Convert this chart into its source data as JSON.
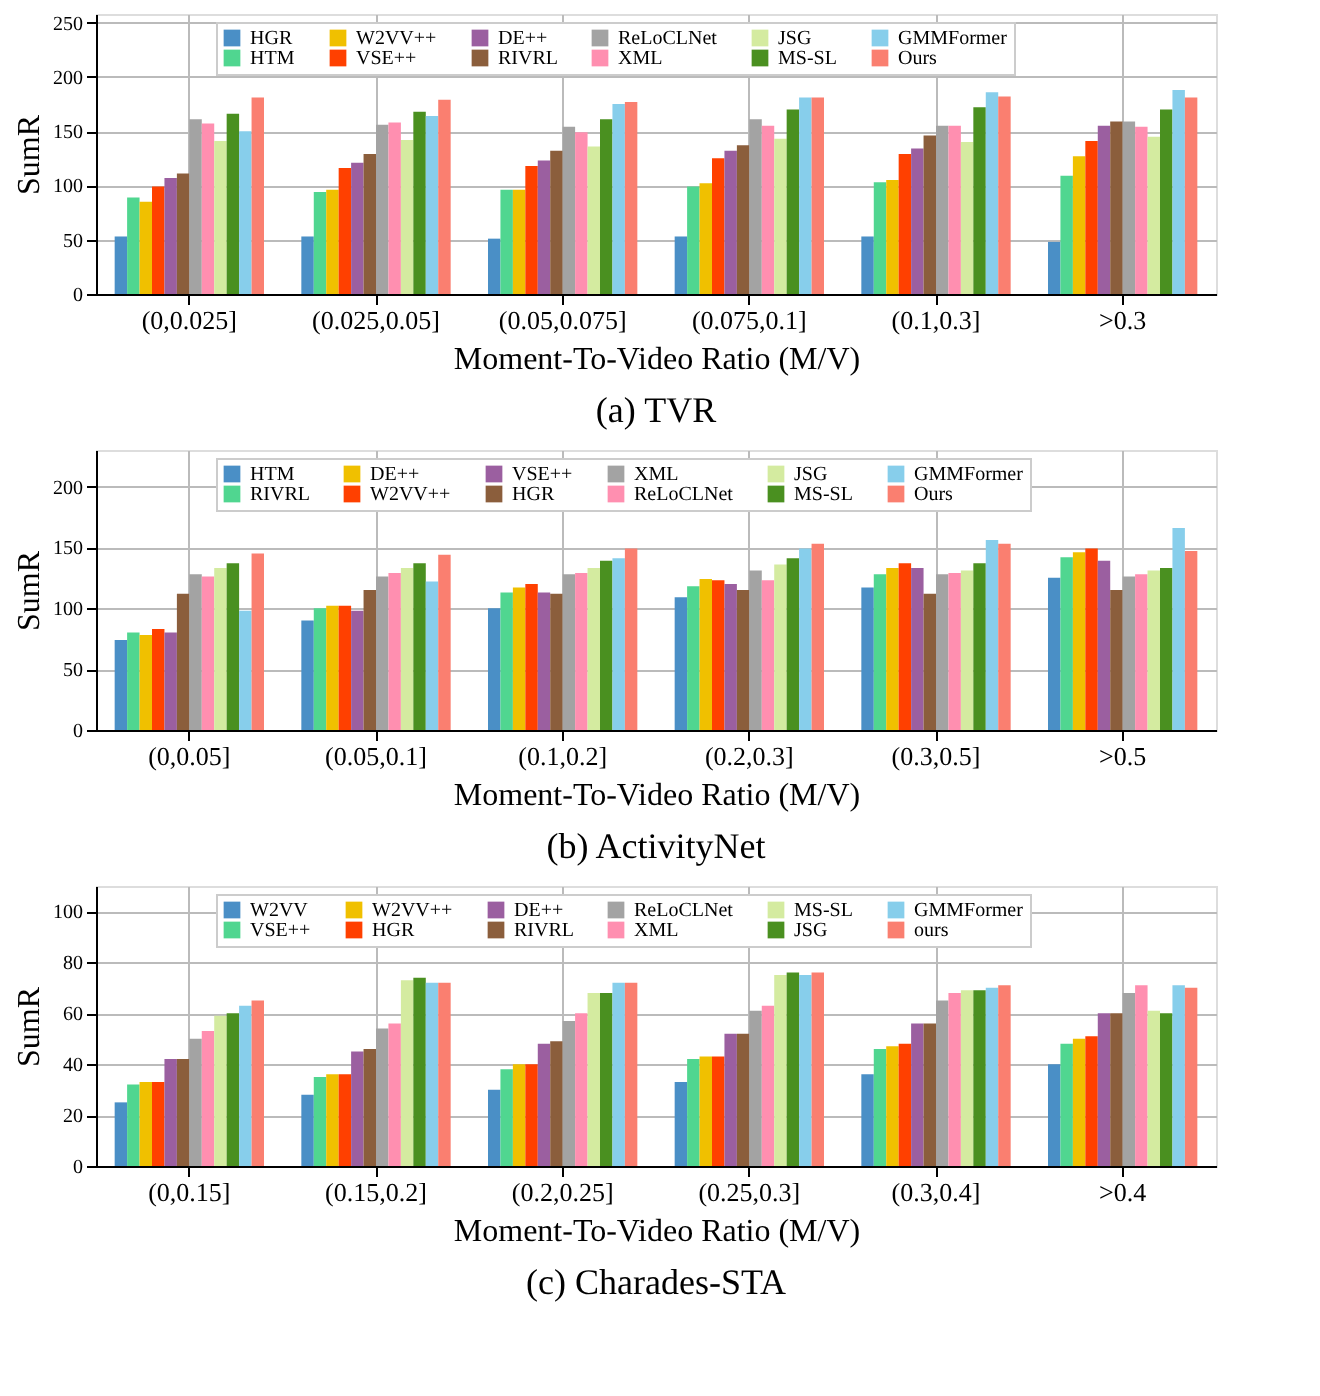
{
  "chart_data": [
    {
      "type": "bar",
      "title": "(a) TVR",
      "xlabel": "Moment-To-Video Ratio (M/V)",
      "ylabel": "SumR",
      "categories": [
        "(0,0.025]",
        "(0.025,0.05]",
        "(0.05,0.075]",
        "(0.075,0.1]",
        "(0.1,0.3]",
        ">0.3"
      ],
      "ylim": [
        0,
        258
      ],
      "yticks": [
        0,
        50,
        100,
        150,
        200,
        250
      ],
      "grid": true,
      "legend": "top",
      "series": [
        {
          "name": "HGR",
          "color": "#4a8fc6",
          "values": [
            53,
            53,
            51,
            53,
            53,
            48
          ]
        },
        {
          "name": "HTM",
          "color": "#50d690",
          "values": [
            89,
            94,
            96,
            99,
            103,
            109
          ]
        },
        {
          "name": "W2VV++",
          "color": "#f0c000",
          "values": [
            85,
            96,
            96,
            102,
            105,
            127
          ]
        },
        {
          "name": "VSE++",
          "color": "#ff4000",
          "values": [
            99,
            116,
            118,
            125,
            129,
            141
          ]
        },
        {
          "name": "DE++",
          "color": "#9b5fa0",
          "values": [
            107,
            121,
            123,
            132,
            134,
            155
          ]
        },
        {
          "name": "RIVRL",
          "color": "#8b5e3c",
          "values": [
            111,
            129,
            132,
            137,
            146,
            159
          ]
        },
        {
          "name": "ReLoCLNet",
          "color": "#a3a3a3",
          "values": [
            161,
            156,
            154,
            161,
            155,
            159
          ]
        },
        {
          "name": "XML",
          "color": "#ff8fb0",
          "values": [
            157,
            158,
            149,
            155,
            155,
            154
          ]
        },
        {
          "name": "JSG",
          "color": "#d4eba0",
          "values": [
            141,
            142,
            136,
            143,
            140,
            145
          ]
        },
        {
          "name": "MS-SL",
          "color": "#4a9020",
          "values": [
            166,
            168,
            161,
            170,
            172,
            170
          ]
        },
        {
          "name": "GMMFormer",
          "color": "#87ceeb",
          "values": [
            150,
            164,
            175,
            181,
            186,
            188
          ]
        },
        {
          "name": "Ours",
          "color": "#fa7f70",
          "values": [
            181,
            179,
            177,
            181,
            182,
            181
          ]
        }
      ]
    },
    {
      "type": "bar",
      "title": "(b) ActivityNet",
      "xlabel": "Moment-To-Video Ratio (M/V)",
      "ylabel": "SumR",
      "categories": [
        "(0,0.05]",
        "(0.05,0.1]",
        "(0.1,0.2]",
        "(0.2,0.3]",
        "(0.3,0.5]",
        ">0.5"
      ],
      "ylim": [
        0,
        230
      ],
      "yticks": [
        0,
        50,
        100,
        150,
        200
      ],
      "grid": true,
      "legend": "top",
      "series": [
        {
          "name": "HTM",
          "color": "#4a8fc6",
          "values": [
            74,
            90,
            100,
            109,
            117,
            125
          ]
        },
        {
          "name": "RIVRL",
          "color": "#50d690",
          "values": [
            80,
            100,
            113,
            118,
            128,
            142
          ]
        },
        {
          "name": "DE++",
          "color": "#f0c000",
          "values": [
            78,
            102,
            117,
            124,
            133,
            146
          ]
        },
        {
          "name": "W2VV++",
          "color": "#ff4000",
          "values": [
            83,
            102,
            120,
            123,
            137,
            149
          ]
        },
        {
          "name": "VSE++",
          "color": "#9b5fa0",
          "values": [
            80,
            98,
            113,
            120,
            133,
            139
          ]
        },
        {
          "name": "HGR",
          "color": "#8b5e3c",
          "values": [
            112,
            115,
            112,
            115,
            112,
            115
          ]
        },
        {
          "name": "XML",
          "color": "#a3a3a3",
          "values": [
            128,
            126,
            128,
            131,
            128,
            126
          ]
        },
        {
          "name": "ReLoCLNet",
          "color": "#ff8fb0",
          "values": [
            126,
            129,
            129,
            123,
            129,
            128
          ]
        },
        {
          "name": "JSG",
          "color": "#d4eba0",
          "values": [
            133,
            133,
            133,
            136,
            131,
            131
          ]
        },
        {
          "name": "MS-SL",
          "color": "#4a9020",
          "values": [
            137,
            137,
            139,
            141,
            137,
            133
          ]
        },
        {
          "name": "GMMFormer",
          "color": "#87ceeb",
          "values": [
            98,
            122,
            141,
            149,
            156,
            166
          ]
        },
        {
          "name": "Ours",
          "color": "#fa7f70",
          "values": [
            145,
            144,
            149,
            153,
            153,
            147
          ]
        }
      ]
    },
    {
      "type": "bar",
      "title": "(c) Charades-STA",
      "xlabel": "Moment-To-Video Ratio (M/V)",
      "ylabel": "SumR",
      "categories": [
        "(0,0.15]",
        "(0.15,0.2]",
        "(0.2,0.25]",
        "(0.25,0.3]",
        "(0.3,0.4]",
        ">0.4"
      ],
      "ylim": [
        0,
        110
      ],
      "yticks": [
        0,
        20,
        40,
        60,
        80,
        100
      ],
      "grid": true,
      "legend": "top",
      "series": [
        {
          "name": "W2VV",
          "color": "#4a8fc6",
          "values": [
            25,
            28,
            30,
            33,
            36,
            40
          ]
        },
        {
          "name": "VSE++",
          "color": "#50d690",
          "values": [
            32,
            35,
            38,
            42,
            46,
            48
          ]
        },
        {
          "name": "W2VV++",
          "color": "#f0c000",
          "values": [
            33,
            36,
            40,
            43,
            47,
            50
          ]
        },
        {
          "name": "HGR",
          "color": "#ff4000",
          "values": [
            33,
            36,
            40,
            43,
            48,
            51
          ]
        },
        {
          "name": "DE++",
          "color": "#9b5fa0",
          "values": [
            42,
            45,
            48,
            52,
            56,
            60
          ]
        },
        {
          "name": "RIVRL",
          "color": "#8b5e3c",
          "values": [
            42,
            46,
            49,
            52,
            56,
            60
          ]
        },
        {
          "name": "ReLoCLNet",
          "color": "#a3a3a3",
          "values": [
            50,
            54,
            57,
            61,
            65,
            68
          ]
        },
        {
          "name": "XML",
          "color": "#ff8fb0",
          "values": [
            53,
            56,
            60,
            63,
            68,
            71
          ]
        },
        {
          "name": "MS-SL",
          "color": "#d4eba0",
          "values": [
            59,
            73,
            68,
            75,
            69,
            61
          ]
        },
        {
          "name": "JSG",
          "color": "#4a9020",
          "values": [
            60,
            74,
            68,
            76,
            69,
            60
          ]
        },
        {
          "name": "GMMFormer",
          "color": "#87ceeb",
          "values": [
            63,
            72,
            72,
            75,
            70,
            71
          ]
        },
        {
          "name": "ours",
          "color": "#fa7f70",
          "values": [
            65,
            72,
            72,
            76,
            71,
            70
          ]
        }
      ]
    }
  ]
}
